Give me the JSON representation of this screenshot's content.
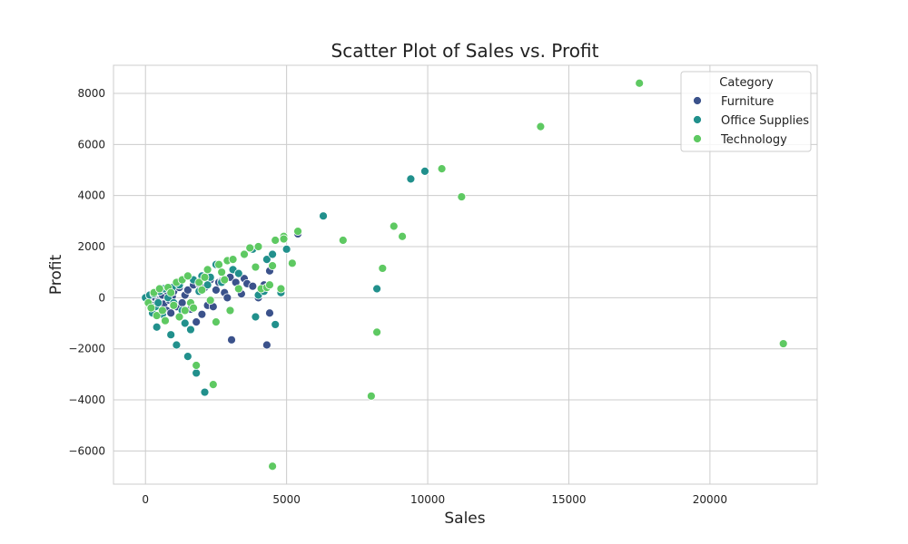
{
  "chart_data": {
    "type": "scatter",
    "title": "Scatter Plot of Sales vs. Profit",
    "xlabel": "Sales",
    "ylabel": "Profit",
    "xlim": [
      -1133,
      23800
    ],
    "ylim": [
      -7300,
      9100
    ],
    "xticks": [
      0,
      5000,
      10000,
      15000,
      20000
    ],
    "yticks": [
      -6000,
      -4000,
      -2000,
      0,
      2000,
      4000,
      6000,
      8000
    ],
    "grid": true,
    "legend": {
      "title": "Category",
      "position": "top-right"
    },
    "series": [
      {
        "name": "Furniture",
        "color": "#3b528b",
        "points": [
          [
            100,
            -100
          ],
          [
            150,
            50
          ],
          [
            200,
            -200
          ],
          [
            250,
            100
          ],
          [
            300,
            -300
          ],
          [
            350,
            0
          ],
          [
            400,
            150
          ],
          [
            450,
            -150
          ],
          [
            500,
            200
          ],
          [
            550,
            -400
          ],
          [
            600,
            100
          ],
          [
            650,
            -250
          ],
          [
            700,
            300
          ],
          [
            750,
            -500
          ],
          [
            800,
            200
          ],
          [
            850,
            -100
          ],
          [
            900,
            -600
          ],
          [
            950,
            50
          ],
          [
            1000,
            250
          ],
          [
            1100,
            -350
          ],
          [
            1200,
            400
          ],
          [
            1300,
            -200
          ],
          [
            1400,
            100
          ],
          [
            1500,
            300
          ],
          [
            1600,
            -450
          ],
          [
            1700,
            500
          ],
          [
            1800,
            -950
          ],
          [
            1900,
            550
          ],
          [
            2000,
            -650
          ],
          [
            2100,
            400
          ],
          [
            2200,
            -300
          ],
          [
            2300,
            700
          ],
          [
            2400,
            -350
          ],
          [
            2500,
            300
          ],
          [
            2600,
            600
          ],
          [
            2700,
            650
          ],
          [
            2800,
            200
          ],
          [
            2900,
            0
          ],
          [
            3000,
            800
          ],
          [
            3050,
            -1650
          ],
          [
            3200,
            600
          ],
          [
            3400,
            150
          ],
          [
            3500,
            750
          ],
          [
            3600,
            550
          ],
          [
            3800,
            450
          ],
          [
            4000,
            0
          ],
          [
            4200,
            500
          ],
          [
            4300,
            -1850
          ],
          [
            4400,
            -600
          ],
          [
            4400,
            1050
          ],
          [
            5400,
            2500
          ]
        ]
      },
      {
        "name": "Office Supplies",
        "color": "#21908c",
        "points": [
          [
            0,
            0
          ],
          [
            150,
            100
          ],
          [
            250,
            -600
          ],
          [
            300,
            150
          ],
          [
            350,
            -350
          ],
          [
            400,
            -1150
          ],
          [
            450,
            -200
          ],
          [
            500,
            250
          ],
          [
            600,
            -650
          ],
          [
            650,
            350
          ],
          [
            700,
            -900
          ],
          [
            800,
            0
          ],
          [
            900,
            -1450
          ],
          [
            950,
            400
          ],
          [
            1000,
            -200
          ],
          [
            1100,
            -1850
          ],
          [
            1200,
            500
          ],
          [
            1300,
            -500
          ],
          [
            1400,
            -1000
          ],
          [
            1500,
            -2300
          ],
          [
            1600,
            -1250
          ],
          [
            1700,
            700
          ],
          [
            1800,
            -2950
          ],
          [
            1900,
            250
          ],
          [
            2000,
            850
          ],
          [
            2100,
            -3700
          ],
          [
            2200,
            500
          ],
          [
            2300,
            800
          ],
          [
            2500,
            1300
          ],
          [
            2700,
            600
          ],
          [
            2900,
            1450
          ],
          [
            3100,
            1100
          ],
          [
            3300,
            950
          ],
          [
            3800,
            1900
          ],
          [
            3900,
            -750
          ],
          [
            4000,
            100
          ],
          [
            4200,
            250
          ],
          [
            4300,
            1500
          ],
          [
            4500,
            1700
          ],
          [
            4600,
            -1050
          ],
          [
            4800,
            200
          ],
          [
            5000,
            1900
          ],
          [
            6300,
            3200
          ],
          [
            8200,
            350
          ],
          [
            9400,
            4650
          ],
          [
            9900,
            4950
          ]
        ]
      },
      {
        "name": "Technology",
        "color": "#5ec962",
        "points": [
          [
            100,
            -200
          ],
          [
            200,
            -400
          ],
          [
            300,
            200
          ],
          [
            400,
            -700
          ],
          [
            500,
            350
          ],
          [
            600,
            -500
          ],
          [
            700,
            -900
          ],
          [
            800,
            400
          ],
          [
            900,
            200
          ],
          [
            1000,
            -300
          ],
          [
            1100,
            600
          ],
          [
            1200,
            -750
          ],
          [
            1300,
            700
          ],
          [
            1400,
            -500
          ],
          [
            1500,
            850
          ],
          [
            1600,
            -200
          ],
          [
            1700,
            -400
          ],
          [
            1800,
            -2650
          ],
          [
            1900,
            600
          ],
          [
            2000,
            300
          ],
          [
            2100,
            800
          ],
          [
            2200,
            1100
          ],
          [
            2300,
            -100
          ],
          [
            2400,
            -3400
          ],
          [
            2500,
            -950
          ],
          [
            2600,
            1300
          ],
          [
            2700,
            1000
          ],
          [
            2800,
            700
          ],
          [
            2900,
            1450
          ],
          [
            3000,
            -500
          ],
          [
            3100,
            1500
          ],
          [
            3300,
            350
          ],
          [
            3500,
            1700
          ],
          [
            3700,
            1950
          ],
          [
            3900,
            1200
          ],
          [
            4000,
            2000
          ],
          [
            4100,
            350
          ],
          [
            4300,
            400
          ],
          [
            4400,
            500
          ],
          [
            4500,
            -6600
          ],
          [
            4500,
            1250
          ],
          [
            4600,
            2250
          ],
          [
            4800,
            350
          ],
          [
            4900,
            2400
          ],
          [
            4900,
            2300
          ],
          [
            5200,
            1350
          ],
          [
            5400,
            2600
          ],
          [
            7000,
            2250
          ],
          [
            8000,
            -3850
          ],
          [
            8200,
            -1350
          ],
          [
            8400,
            1150
          ],
          [
            8800,
            2800
          ],
          [
            9100,
            2400
          ],
          [
            10500,
            5050
          ],
          [
            11200,
            3950
          ],
          [
            14000,
            6700
          ],
          [
            17500,
            8400
          ],
          [
            22600,
            -1800
          ]
        ]
      }
    ]
  }
}
